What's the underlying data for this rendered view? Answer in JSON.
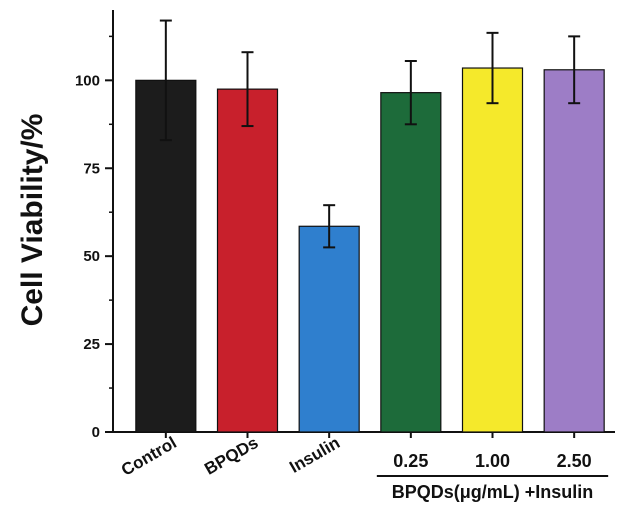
{
  "chart_data": {
    "type": "bar",
    "ylabel": "Cell Viability/%",
    "xlabel": "",
    "ylim": [
      0,
      120
    ],
    "yticks": [
      0,
      25,
      50,
      75,
      100
    ],
    "categories": [
      "Control",
      "BPQDs",
      "Insulin",
      "0.25",
      "1.00",
      "2.50"
    ],
    "values": [
      100,
      97.5,
      58.5,
      96.5,
      103.5,
      103
    ],
    "errors": [
      17,
      10.5,
      6,
      9,
      10,
      9.5
    ],
    "colors": [
      "#1c1c1c",
      "#c8202c",
      "#2f7fce",
      "#1d6b3a",
      "#f5e92b",
      "#9d7dc6"
    ],
    "rotated_categories": [
      "Control",
      "BPQDs",
      "Insulin"
    ],
    "group_label": "BPQDs(μg/mL) +Insulin",
    "grid": false
  }
}
